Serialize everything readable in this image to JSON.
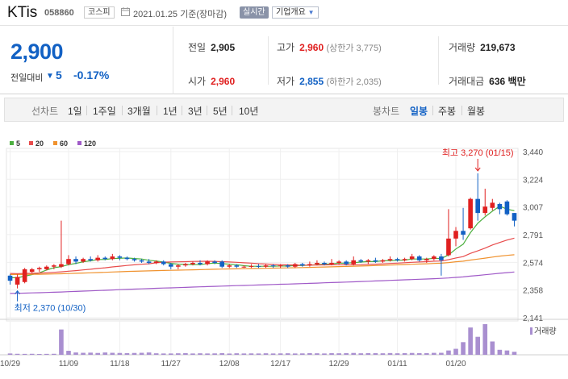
{
  "header": {
    "name": "KTis",
    "code": "058860",
    "market": "코스피",
    "date": "2021.01.25 기준(장마감)",
    "live_button": "실시간",
    "overview_button": "기업개요"
  },
  "summary": {
    "price": "2,900",
    "change_label": "전일대비",
    "change_value": "5",
    "change_rate": "-0.17%",
    "prev_close_label": "전일",
    "prev_close": "2,905",
    "high_label": "고가",
    "high": "2,960",
    "upper_limit": "(상한가 3,775)",
    "volume_label": "거래량",
    "volume": "219,673",
    "open_label": "시가",
    "open": "2,960",
    "low_label": "저가",
    "low": "2,855",
    "lower_limit": "(하한가 2,035)",
    "amount_label": "거래대금",
    "amount": "636 백만"
  },
  "toolbar": {
    "line_chart_label": "선차트",
    "periods": [
      "1일",
      "1주일",
      "3개월",
      "1년",
      "3년",
      "5년",
      "10년"
    ],
    "candle_label": "봉차트",
    "candle_types": [
      "일봉",
      "주봉",
      "월봉"
    ],
    "active_candle": "일봉"
  },
  "colors": {
    "up": "#e02020",
    "down": "#1261c4",
    "ma5": "#4caf3f",
    "ma20": "#e84c4c",
    "ma60": "#f0922e",
    "ma120": "#a05ac8",
    "volume": "#a98fd0"
  },
  "chart_data": {
    "type": "candlestick",
    "legend": [
      "5",
      "20",
      "60",
      "120"
    ],
    "y_ticks": [
      3440,
      3224,
      3007,
      2791,
      2574,
      2358,
      2141
    ],
    "ylim": [
      2141,
      3440
    ],
    "x_ticks": [
      "10/29",
      "11/09",
      "11/18",
      "11/27",
      "12/08",
      "12/17",
      "12/29",
      "01/11",
      "01/20"
    ],
    "max_annotation": "최고 3,270 (01/15)",
    "min_annotation": "최저 2,370 (10/30)",
    "volume_label": "거래량",
    "candles": [
      {
        "o": 2470,
        "c": 2430,
        "h": 2480,
        "l": 2400
      },
      {
        "o": 2400,
        "c": 2460,
        "h": 2480,
        "l": 2370
      },
      {
        "o": 2420,
        "c": 2520,
        "h": 2530,
        "l": 2410
      },
      {
        "o": 2500,
        "c": 2520,
        "h": 2530,
        "l": 2490
      },
      {
        "o": 2520,
        "c": 2530,
        "h": 2540,
        "l": 2500
      },
      {
        "o": 2520,
        "c": 2540,
        "h": 2550,
        "l": 2510
      },
      {
        "o": 2540,
        "c": 2550,
        "h": 2560,
        "l": 2520
      },
      {
        "o": 2540,
        "c": 2560,
        "h": 2900,
        "l": 2530
      },
      {
        "o": 2560,
        "c": 2600,
        "h": 2630,
        "l": 2550
      },
      {
        "o": 2600,
        "c": 2580,
        "h": 2620,
        "l": 2560
      },
      {
        "o": 2580,
        "c": 2600,
        "h": 2610,
        "l": 2570
      },
      {
        "o": 2600,
        "c": 2590,
        "h": 2620,
        "l": 2580
      },
      {
        "o": 2590,
        "c": 2610,
        "h": 2630,
        "l": 2580
      },
      {
        "o": 2610,
        "c": 2600,
        "h": 2620,
        "l": 2590
      },
      {
        "o": 2600,
        "c": 2620,
        "h": 2640,
        "l": 2590
      },
      {
        "o": 2620,
        "c": 2610,
        "h": 2630,
        "l": 2590
      },
      {
        "o": 2610,
        "c": 2600,
        "h": 2620,
        "l": 2590
      },
      {
        "o": 2600,
        "c": 2590,
        "h": 2610,
        "l": 2580
      },
      {
        "o": 2590,
        "c": 2580,
        "h": 2600,
        "l": 2570
      },
      {
        "o": 2580,
        "c": 2570,
        "h": 2600,
        "l": 2560
      },
      {
        "o": 2570,
        "c": 2580,
        "h": 2590,
        "l": 2560
      },
      {
        "o": 2580,
        "c": 2560,
        "h": 2590,
        "l": 2550
      },
      {
        "o": 2560,
        "c": 2540,
        "h": 2570,
        "l": 2520
      },
      {
        "o": 2540,
        "c": 2550,
        "h": 2560,
        "l": 2520
      },
      {
        "o": 2550,
        "c": 2560,
        "h": 2570,
        "l": 2540
      },
      {
        "o": 2560,
        "c": 2570,
        "h": 2580,
        "l": 2550
      },
      {
        "o": 2570,
        "c": 2560,
        "h": 2590,
        "l": 2550
      },
      {
        "o": 2560,
        "c": 2580,
        "h": 2590,
        "l": 2550
      },
      {
        "o": 2580,
        "c": 2570,
        "h": 2590,
        "l": 2560
      },
      {
        "o": 2580,
        "c": 2540,
        "h": 2590,
        "l": 2530
      },
      {
        "o": 2540,
        "c": 2550,
        "h": 2560,
        "l": 2530
      },
      {
        "o": 2550,
        "c": 2540,
        "h": 2560,
        "l": 2530
      },
      {
        "o": 2540,
        "c": 2540,
        "h": 2550,
        "l": 2530
      },
      {
        "o": 2540,
        "c": 2545,
        "h": 2560,
        "l": 2530
      },
      {
        "o": 2545,
        "c": 2540,
        "h": 2560,
        "l": 2530
      },
      {
        "o": 2540,
        "c": 2550,
        "h": 2560,
        "l": 2530
      },
      {
        "o": 2550,
        "c": 2545,
        "h": 2560,
        "l": 2530
      },
      {
        "o": 2545,
        "c": 2550,
        "h": 2560,
        "l": 2530
      },
      {
        "o": 2550,
        "c": 2540,
        "h": 2560,
        "l": 2530
      },
      {
        "o": 2540,
        "c": 2560,
        "h": 2570,
        "l": 2530
      },
      {
        "o": 2560,
        "c": 2550,
        "h": 2570,
        "l": 2540
      },
      {
        "o": 2550,
        "c": 2560,
        "h": 2580,
        "l": 2540
      },
      {
        "o": 2560,
        "c": 2570,
        "h": 2590,
        "l": 2550
      },
      {
        "o": 2570,
        "c": 2560,
        "h": 2580,
        "l": 2550
      },
      {
        "o": 2560,
        "c": 2570,
        "h": 2600,
        "l": 2550
      },
      {
        "o": 2570,
        "c": 2580,
        "h": 2590,
        "l": 2560
      },
      {
        "o": 2580,
        "c": 2560,
        "h": 2590,
        "l": 2550
      },
      {
        "o": 2560,
        "c": 2590,
        "h": 2620,
        "l": 2550
      },
      {
        "o": 2590,
        "c": 2580,
        "h": 2600,
        "l": 2570
      },
      {
        "o": 2580,
        "c": 2590,
        "h": 2600,
        "l": 2560
      },
      {
        "o": 2590,
        "c": 2580,
        "h": 2610,
        "l": 2570
      },
      {
        "o": 2580,
        "c": 2590,
        "h": 2600,
        "l": 2570
      },
      {
        "o": 2590,
        "c": 2600,
        "h": 2620,
        "l": 2580
      },
      {
        "o": 2600,
        "c": 2590,
        "h": 2610,
        "l": 2580
      },
      {
        "o": 2590,
        "c": 2600,
        "h": 2610,
        "l": 2580
      },
      {
        "o": 2600,
        "c": 2620,
        "h": 2640,
        "l": 2590
      },
      {
        "o": 2620,
        "c": 2590,
        "h": 2630,
        "l": 2580
      },
      {
        "o": 2590,
        "c": 2600,
        "h": 2610,
        "l": 2570
      },
      {
        "o": 2600,
        "c": 2620,
        "h": 2630,
        "l": 2590
      },
      {
        "o": 2620,
        "c": 2590,
        "h": 2640,
        "l": 2470
      },
      {
        "o": 2630,
        "c": 2760,
        "h": 2990,
        "l": 2620
      },
      {
        "o": 2760,
        "c": 2820,
        "h": 2850,
        "l": 2700
      },
      {
        "o": 2820,
        "c": 2790,
        "h": 3000,
        "l": 2750
      },
      {
        "o": 2840,
        "c": 3070,
        "h": 3080,
        "l": 2830
      },
      {
        "o": 3070,
        "c": 2960,
        "h": 3270,
        "l": 2900
      },
      {
        "o": 2960,
        "c": 3010,
        "h": 3150,
        "l": 2940
      },
      {
        "o": 3000,
        "c": 3040,
        "h": 3070,
        "l": 2980
      },
      {
        "o": 3030,
        "c": 2990,
        "h": 3040,
        "l": 2950
      },
      {
        "o": 3050,
        "c": 2950,
        "h": 3060,
        "l": 2940
      },
      {
        "o": 2960,
        "c": 2900,
        "h": 2960,
        "l": 2855
      }
    ],
    "volumes": [
      40,
      30,
      28,
      30,
      25,
      28,
      30,
      760,
      120,
      70,
      60,
      65,
      55,
      70,
      60,
      55,
      50,
      55,
      60,
      70,
      45,
      40,
      40,
      45,
      50,
      40,
      45,
      40,
      42,
      50,
      38,
      45,
      40,
      42,
      40,
      45,
      40,
      42,
      45,
      40,
      42,
      50,
      45,
      40,
      48,
      45,
      50,
      55,
      45,
      50,
      48,
      45,
      52,
      45,
      50,
      55,
      48,
      50,
      58,
      60,
      130,
      180,
      380,
      820,
      540,
      920,
      400,
      150,
      130,
      90
    ]
  }
}
